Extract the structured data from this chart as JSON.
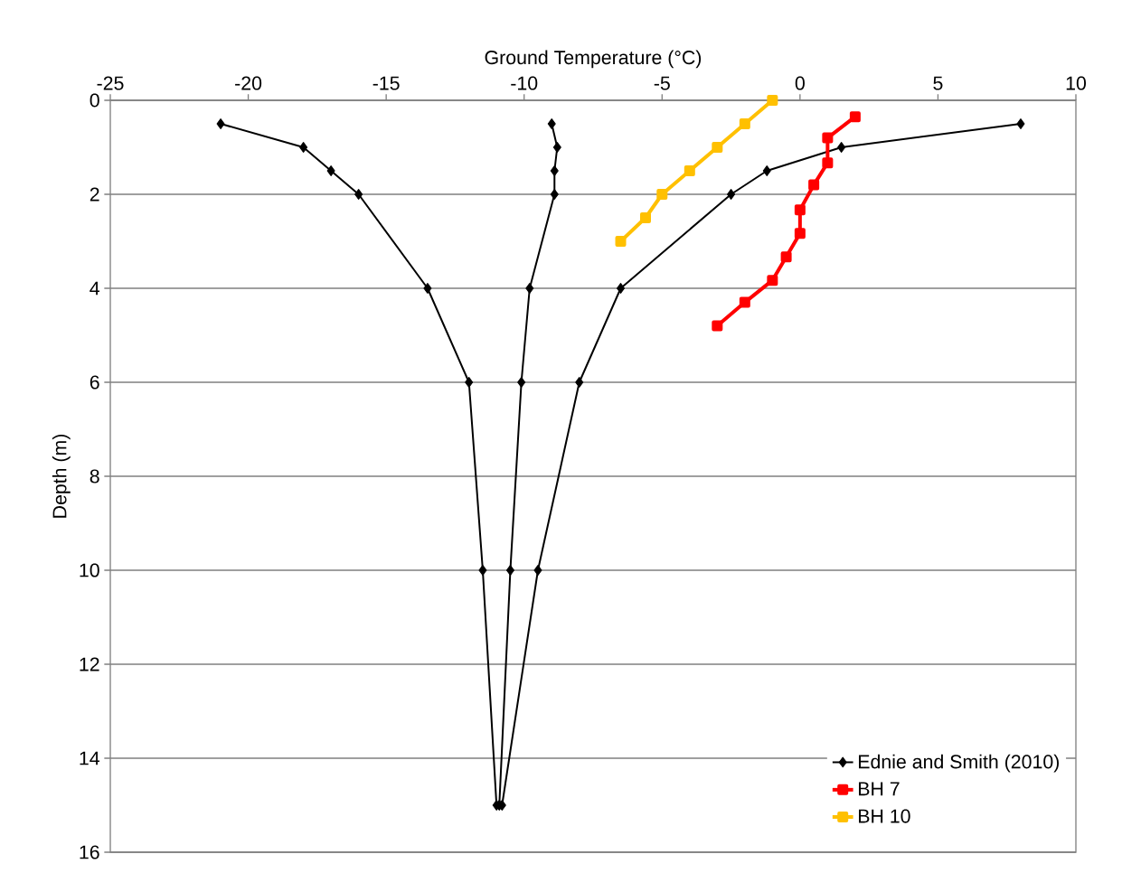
{
  "chart_data": {
    "type": "line",
    "xlabel": "Ground Temperature (°C)",
    "ylabel": "Depth (m)",
    "xlim": [
      -25,
      10
    ],
    "xticks": [
      -25,
      -20,
      -15,
      -10,
      -5,
      0,
      5,
      10
    ],
    "ylim": [
      16,
      0
    ],
    "yticks": [
      0,
      2,
      4,
      6,
      8,
      10,
      12,
      14,
      16
    ],
    "grid": "y",
    "legend": "bottom right",
    "series": [
      {
        "name": "Ednie and Smith (2010)",
        "color": "#000000",
        "marker": "diamond",
        "x": [
          -21.0,
          -18.0,
          -17.0,
          -16.0,
          -13.5,
          -12.0,
          -11.5,
          -11.0
        ],
        "values": [
          0.5,
          1,
          1.5,
          2,
          4,
          6,
          10,
          15
        ]
      },
      {
        "color": "#000000",
        "marker": "diamond",
        "x": [
          -9.0,
          -8.8,
          -8.9,
          -8.9,
          -9.8,
          -10.1,
          -10.5,
          -10.9
        ],
        "values": [
          0.5,
          1,
          1.5,
          2,
          4,
          6,
          10,
          15
        ]
      },
      {
        "color": "#000000",
        "marker": "diamond",
        "x": [
          8.0,
          1.5,
          -1.2,
          -2.5,
          -6.5,
          -8.0,
          -9.5,
          -10.8
        ],
        "values": [
          0.5,
          1,
          1.5,
          2,
          4,
          6,
          10,
          15
        ]
      },
      {
        "name": "BH 7",
        "color": "#ff0000",
        "marker": "square",
        "x": [
          2.0,
          1.0,
          1.0,
          0.5,
          0.0,
          0.0,
          -0.5,
          -1.0,
          -2.0,
          -3.0
        ],
        "values": [
          0.35,
          0.8,
          1.33,
          1.8,
          2.33,
          2.83,
          3.33,
          3.83,
          4.3,
          4.8
        ]
      },
      {
        "name": "BH 10",
        "color": "#ffc000",
        "marker": "square",
        "x": [
          -1.0,
          -2.0,
          -3.0,
          -4.0,
          -5.0,
          -5.6,
          -6.5
        ],
        "values": [
          0.0,
          0.5,
          1.0,
          1.5,
          2.0,
          2.5,
          3.0
        ]
      }
    ]
  }
}
